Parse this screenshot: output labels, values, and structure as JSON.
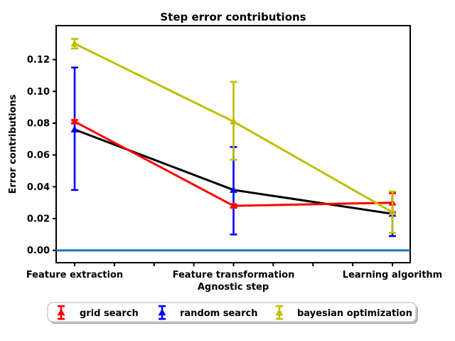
{
  "chart_data": {
    "type": "line",
    "title": "Step error contributions",
    "xlabel": "Agnostic step",
    "ylabel": "Error contributions",
    "categories": [
      "Feature extraction",
      "Feature transformation",
      "Learning algorithm"
    ],
    "ytick_labels": [
      "0.00",
      "0.02",
      "0.04",
      "0.06",
      "0.08",
      "0.10",
      "0.12"
    ],
    "ytick_values": [
      0.0,
      0.02,
      0.04,
      0.06,
      0.08,
      0.1,
      0.12
    ],
    "ylim": [
      -0.008,
      0.1415
    ],
    "x_minor_tick_count": 9,
    "grid": "off",
    "legend_position": "lower center outside",
    "baseline": {
      "y": 0.0,
      "color": "#1f77b4"
    },
    "series": [
      {
        "name": "grid search",
        "line_color": "#ff0000",
        "marker_color": "#ff0000",
        "marker": "triangle-up",
        "values": [
          0.081,
          0.028,
          0.03
        ],
        "err_lo": [
          0.001,
          0.001,
          0.006
        ],
        "err_hi": [
          0.001,
          0.001,
          0.006
        ]
      },
      {
        "name": "random search",
        "line_color": "#000000",
        "marker_color": "#0000ff",
        "marker": "triangle-up",
        "values": [
          0.076,
          0.038,
          0.023
        ],
        "err_lo": [
          0.038,
          0.028,
          0.014
        ],
        "err_hi": [
          0.039,
          0.027,
          0.013
        ]
      },
      {
        "name": "bayesian optimization",
        "line_color": "#bfbf00",
        "marker_color": "#bfbf00",
        "marker": "triangle-up",
        "values": [
          0.13,
          0.081,
          0.024
        ],
        "err_lo": [
          0.003,
          0.024,
          0.013
        ],
        "err_hi": [
          0.003,
          0.025,
          0.013
        ]
      }
    ],
    "legend": [
      "grid search",
      "random search",
      "bayesian optimization"
    ]
  }
}
